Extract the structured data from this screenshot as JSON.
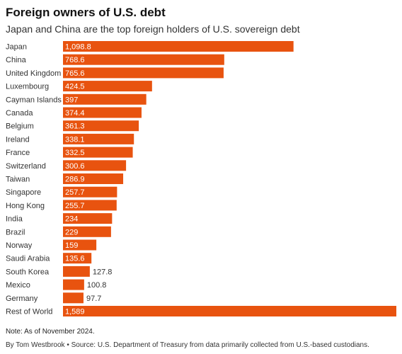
{
  "title": "Foreign owners of U.S. debt",
  "subtitle": "Japan and China are the top foreign holders of U.S. sovereign debt",
  "note": "Note: As of November 2024.",
  "byline": "By Tom Westbrook • Source: U.S. Department of Treasury from data primarily collected from U.S.-based custodians.",
  "colors": {
    "bar": "#e8530f",
    "label_inside": "#ffffff",
    "label_outside": "#333333"
  },
  "chart_data": {
    "type": "bar",
    "orientation": "horizontal",
    "title": "Foreign owners of U.S. debt",
    "subtitle": "Japan and China are the top foreign holders of U.S. sovereign debt",
    "categories": [
      "Japan",
      "China",
      "United Kingdom",
      "Luxembourg",
      "Cayman Islands",
      "Canada",
      "Belgium",
      "Ireland",
      "France",
      "Switzerland",
      "Taiwan",
      "Singapore",
      "Hong Kong",
      "India",
      "Brazil",
      "Norway",
      "Saudi Arabia",
      "South Korea",
      "Mexico",
      "Germany",
      "Rest of World"
    ],
    "values": [
      1098.8,
      768.6,
      765.6,
      424.5,
      397,
      374.4,
      361.3,
      338.1,
      332.5,
      300.6,
      286.9,
      257.7,
      255.7,
      234,
      229,
      159,
      135.6,
      127.8,
      100.8,
      97.7,
      1589
    ],
    "value_labels": [
      "1,098.8",
      "768.6",
      "765.6",
      "424.5",
      "397",
      "374.4",
      "361.3",
      "338.1",
      "332.5",
      "300.6",
      "286.9",
      "257.7",
      "255.7",
      "234",
      "229",
      "159",
      "135.6",
      "127.8",
      "100.8",
      "97.7",
      "1,589"
    ],
    "xlim": [
      0,
      1589
    ],
    "grid": false,
    "legend": "none"
  }
}
